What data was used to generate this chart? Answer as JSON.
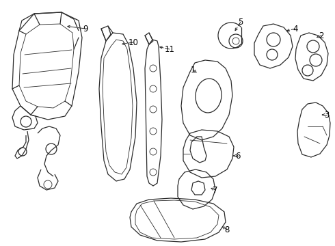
{
  "background_color": "#ffffff",
  "line_color": "#2a2a2a",
  "label_color": "#000000",
  "figsize": [
    4.9,
    3.6
  ],
  "dpi": 100,
  "border": false
}
